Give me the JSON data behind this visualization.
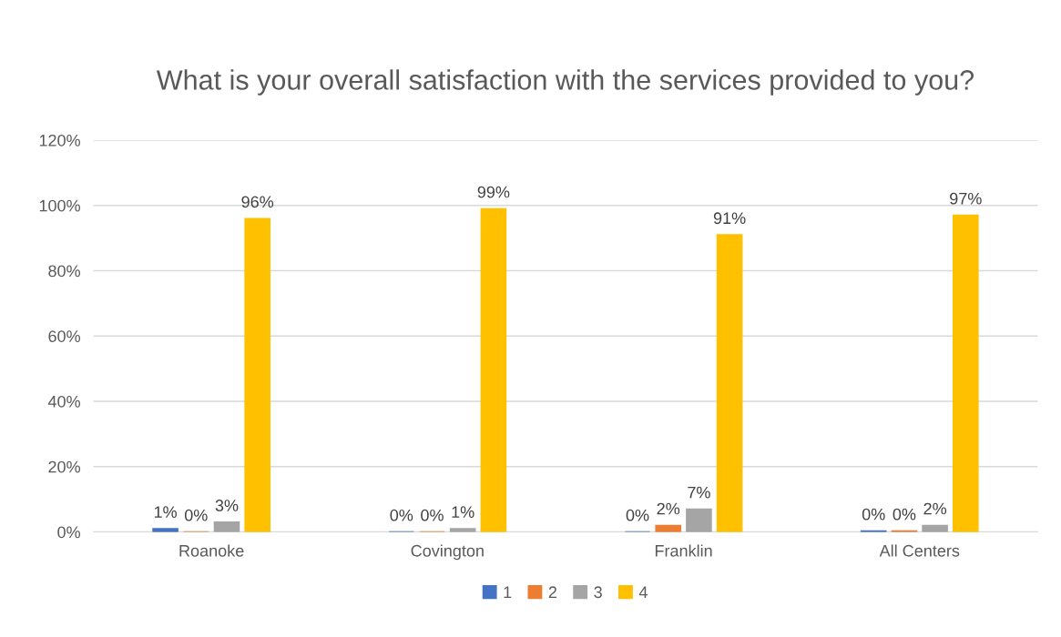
{
  "chart_data": {
    "type": "bar",
    "title": "What is your overall satisfaction with the services provided to you?",
    "categories": [
      "Roanoke",
      "Covington",
      "Franklin",
      "All Centers"
    ],
    "series": [
      {
        "name": "1",
        "color": "#4472c4",
        "values": [
          1,
          0,
          0,
          0.3
        ],
        "value_labels": [
          "1%",
          "0%",
          "0%",
          "0%"
        ]
      },
      {
        "name": "2",
        "color": "#ed7d31",
        "values": [
          0,
          0,
          2,
          0.3
        ],
        "value_labels": [
          "0%",
          "0%",
          "2%",
          "0%"
        ]
      },
      {
        "name": "3",
        "color": "#a5a5a5",
        "values": [
          3,
          1,
          7,
          2
        ],
        "value_labels": [
          "3%",
          "1%",
          "7%",
          "2%"
        ]
      },
      {
        "name": "4",
        "color": "#ffc000",
        "values": [
          96,
          99,
          91,
          97
        ],
        "value_labels": [
          "96%",
          "99%",
          "91%",
          "97%"
        ]
      }
    ],
    "ylim": [
      0,
      120
    ],
    "yticks": [
      {
        "value": 0,
        "label": "0%"
      },
      {
        "value": 20,
        "label": "20%"
      },
      {
        "value": 40,
        "label": "40%"
      },
      {
        "value": 60,
        "label": "60%"
      },
      {
        "value": 80,
        "label": "80%"
      },
      {
        "value": 100,
        "label": "100%"
      },
      {
        "value": 120,
        "label": "120%"
      }
    ],
    "grid": "y",
    "legend": "bottom"
  }
}
